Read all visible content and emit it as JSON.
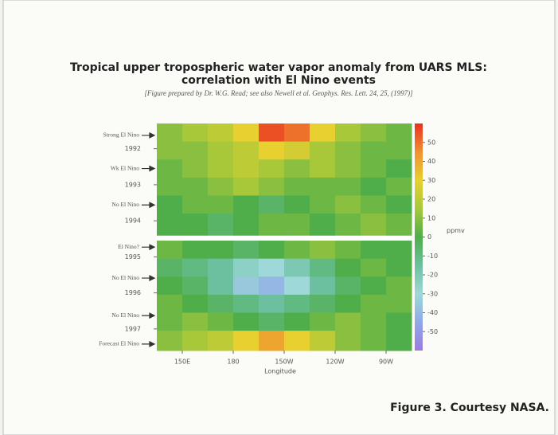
{
  "chart_data": {
    "type": "heatmap",
    "title": "Tropical upper tropospheric water vapor anomaly from UARS MLS:",
    "title_line2": "correlation with El Nino events",
    "subtitle": "[Figure prepared by Dr. W.G. Read; see also Newell et al. Geophys. Res. Lett. 24, 25, (1997)]",
    "x_label": "Longitude",
    "xlim": [
      135,
      285
    ],
    "xticks": [
      {
        "value": 150,
        "label": "150E"
      },
      {
        "value": 180,
        "label": "180"
      },
      {
        "value": 210,
        "label": "150W"
      },
      {
        "value": 240,
        "label": "120W"
      },
      {
        "value": 270,
        "label": "90W"
      }
    ],
    "ylim": [
      1991.3,
      1997.6
    ],
    "yticks": [
      1992,
      1993,
      1994,
      1995,
      1996,
      1997
    ],
    "xbins": [
      135,
      150,
      165,
      180,
      195,
      210,
      225,
      240,
      255,
      270,
      285
    ],
    "ybins": [
      1991.3,
      1991.8,
      1992.3,
      1992.8,
      1993.3,
      1993.8,
      1994.4,
      1994.55,
      1995.05,
      1995.55,
      1996.05,
      1996.55,
      1997.05,
      1997.6
    ],
    "z": [
      [
        10,
        15,
        20,
        30,
        55,
        50,
        30,
        15,
        10,
        5
      ],
      [
        10,
        10,
        15,
        20,
        30,
        25,
        15,
        10,
        5,
        5
      ],
      [
        5,
        10,
        15,
        20,
        15,
        10,
        15,
        10,
        5,
        0
      ],
      [
        5,
        5,
        10,
        15,
        10,
        5,
        5,
        5,
        0,
        5
      ],
      [
        0,
        5,
        5,
        0,
        -5,
        0,
        5,
        10,
        5,
        0
      ],
      [
        0,
        0,
        -5,
        0,
        5,
        5,
        0,
        5,
        10,
        5
      ],
      [
        null,
        null,
        null,
        null,
        null,
        null,
        null,
        null,
        null,
        null
      ],
      [
        5,
        0,
        0,
        -5,
        0,
        5,
        10,
        5,
        0,
        0
      ],
      [
        -5,
        -10,
        -15,
        -25,
        -30,
        -20,
        -10,
        0,
        5,
        0
      ],
      [
        0,
        -5,
        -15,
        -35,
        -40,
        -30,
        -15,
        -5,
        0,
        5
      ],
      [
        5,
        0,
        -5,
        -10,
        -15,
        -10,
        -5,
        0,
        5,
        5
      ],
      [
        5,
        10,
        5,
        0,
        -5,
        0,
        5,
        10,
        5,
        0
      ],
      [
        10,
        15,
        20,
        30,
        40,
        30,
        20,
        10,
        5,
        0
      ]
    ],
    "zlim": [
      -60,
      60
    ],
    "zticks": [
      50,
      40,
      30,
      20,
      10,
      0,
      -10,
      -20,
      -30,
      -40,
      -50
    ],
    "z_label": "ppmv",
    "colorscale": [
      "#9a7ce0",
      "#8fa8e8",
      "#9ed8d8",
      "#6cc0a0",
      "#4fae4a",
      "#a8c83a",
      "#e8d030",
      "#f09030",
      "#e83020"
    ],
    "annotations": [
      {
        "text": "Strong El Nino",
        "y": 1991.63
      },
      {
        "text": "Wk El Nino",
        "y": 1992.55
      },
      {
        "text": "No El Nino",
        "y": 1993.56
      },
      {
        "text": "El Nino?",
        "y": 1994.73
      },
      {
        "text": "No El Nino",
        "y": 1995.59
      },
      {
        "text": "No El Nino",
        "y": 1996.63
      },
      {
        "text": "Forecast El Nino",
        "y": 1997.42
      }
    ],
    "caption": "Figure 3. Courtesy NASA."
  }
}
